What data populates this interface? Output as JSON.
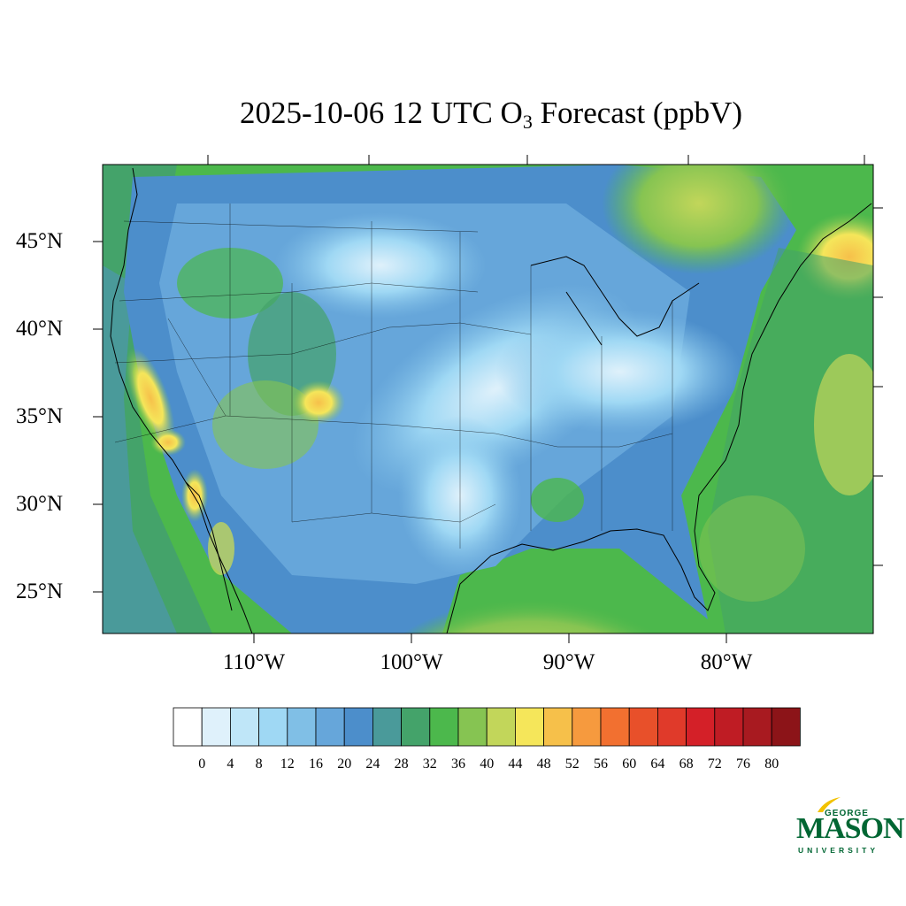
{
  "title": {
    "main": "2025-10-06 12 UTC O",
    "subscript": "3",
    "suffix": " Forecast (ppbV)"
  },
  "map": {
    "region": "Contiguous United States",
    "lat_labels": [
      "45°N",
      "40°N",
      "35°N",
      "30°N",
      "25°N"
    ],
    "lon_labels": [
      "110°W",
      "100°W",
      "90°W",
      "80°W"
    ]
  },
  "colorbar": {
    "tick_labels": [
      "0",
      "4",
      "8",
      "12",
      "16",
      "20",
      "24",
      "28",
      "32",
      "36",
      "40",
      "44",
      "48",
      "52",
      "56",
      "60",
      "64",
      "68",
      "72",
      "76",
      "80"
    ],
    "colors": [
      "#ffffff",
      "#dff1fb",
      "#bfe6f8",
      "#9fd8f4",
      "#80bfe6",
      "#66a6da",
      "#4c8ecb",
      "#4a9a9a",
      "#44a36a",
      "#4cb84c",
      "#86c452",
      "#c2d65a",
      "#f5e65a",
      "#f6c04a",
      "#f69a3e",
      "#f27030",
      "#e8502a",
      "#e03a2a",
      "#d42028",
      "#bf1c24",
      "#a81a20",
      "#8c1418"
    ]
  },
  "logo": {
    "line1": "GEORGE",
    "line2": "MASON",
    "line3": "UNIVERSITY",
    "color": "#006633",
    "accent": "#f2c200"
  }
}
